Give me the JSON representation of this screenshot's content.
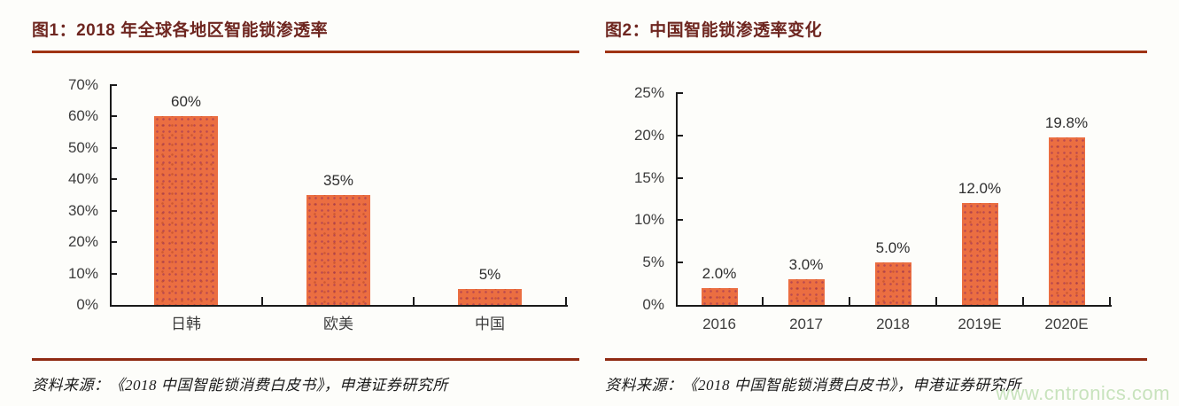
{
  "figures": [
    {
      "title": "图1：2018 年全球各地区智能锁渗透率",
      "source": "资料来源：《2018 中国智能锁消费白皮书》，申港证券研究所"
    },
    {
      "title": "图2：中国智能锁渗透率变化",
      "source": "资料来源：《2018 中国智能锁消费白皮书》，申港证券研究所"
    }
  ],
  "watermark": {
    "text": "www.cntronics.com",
    "color": "#c8e3bd"
  },
  "colors": {
    "bar_fill": "#eb6e41",
    "bar_dot": "#b0486a",
    "title_text": "#6e2620",
    "title_rule": "#a03414",
    "source_rule": "#8f2a12",
    "axis": "#1a1a1a",
    "tick_label": "#3d3d3d",
    "background": "#fdfdfa"
  },
  "chart_data": [
    {
      "type": "bar",
      "title": "2018 年全球各地区智能锁渗透率",
      "categories": [
        "日韩",
        "欧美",
        "中国"
      ],
      "values": [
        60,
        35,
        5
      ],
      "data_labels": [
        "60%",
        "35%",
        "5%"
      ],
      "xlabel": "",
      "ylabel": "",
      "ylim": [
        0,
        70
      ],
      "y_ticks": [
        "0%",
        "10%",
        "20%",
        "30%",
        "40%",
        "50%",
        "60%",
        "70%"
      ],
      "grid": false,
      "legend": false,
      "bar_color": "#eb6e41"
    },
    {
      "type": "bar",
      "title": "中国智能锁渗透率变化",
      "categories": [
        "2016",
        "2017",
        "2018",
        "2019E",
        "2020E"
      ],
      "values": [
        2.0,
        3.0,
        5.0,
        12.0,
        19.8
      ],
      "data_labels": [
        "2.0%",
        "3.0%",
        "5.0%",
        "12.0%",
        "19.8%"
      ],
      "xlabel": "",
      "ylabel": "",
      "ylim": [
        0,
        25
      ],
      "y_ticks": [
        "0%",
        "5%",
        "10%",
        "15%",
        "20%",
        "25%"
      ],
      "grid": false,
      "legend": false,
      "bar_color": "#eb6e41"
    }
  ]
}
